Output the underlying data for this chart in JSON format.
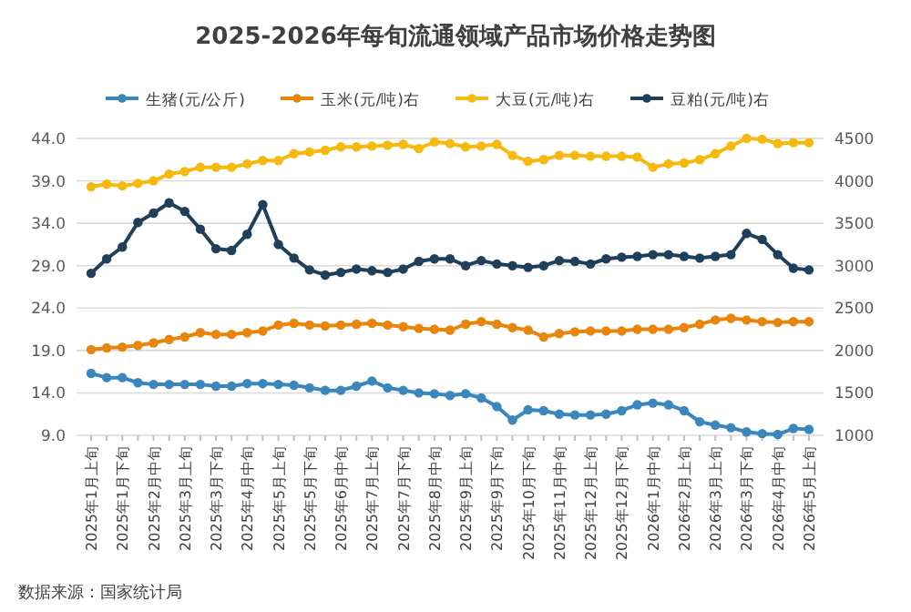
{
  "chart_data": {
    "type": "line",
    "title": "2025-2026年每旬流通领域产品市场价格走势图",
    "categories": [
      "2025年1月上旬",
      null,
      "2025年1月下旬",
      null,
      "2025年2月中旬",
      null,
      "2025年3月上旬",
      null,
      "2025年3月下旬",
      null,
      "2025年4月中旬",
      null,
      "2025年5月上旬",
      null,
      "2025年5月下旬",
      null,
      "2025年6月中旬",
      null,
      "2025年7月上旬",
      null,
      "2025年7月下旬",
      null,
      "2025年8月中旬",
      null,
      "2025年9月上旬",
      null,
      "2025年9月下旬",
      null,
      "2025年10月下旬",
      null,
      "2025年11月中旬",
      null,
      "2025年12月上旬",
      null,
      "2025年12月下旬",
      null,
      "2026年1月中旬",
      null,
      "2026年2月上旬",
      null,
      "2026年3月上旬",
      null,
      "2026年3月下旬",
      null,
      "2026年4月中旬",
      null,
      "2026年5月上旬"
    ],
    "series": [
      {
        "name": "生猪(元/公斤)",
        "color": "#3a87bd",
        "values": [
          16.3,
          15.8,
          15.8,
          15.2,
          15.0,
          15.0,
          15.0,
          15.0,
          14.8,
          14.8,
          15.1,
          15.1,
          15.0,
          14.9,
          14.6,
          14.3,
          14.3,
          14.8,
          15.4,
          14.6,
          14.3,
          14.0,
          13.9,
          13.7,
          13.9,
          13.4,
          12.4,
          10.8,
          12.0,
          11.9,
          11.5,
          11.4,
          11.4,
          11.5,
          11.9,
          12.6,
          12.8,
          12.6,
          11.9,
          10.6,
          10.2,
          9.9,
          9.4,
          9.2,
          9.1,
          9.8,
          9.7
        ]
      },
      {
        "name": "玉米(元/吨)右",
        "color": "#e8850c",
        "axis": "y2",
        "values": [
          2010,
          2030,
          2040,
          2060,
          2090,
          2130,
          2160,
          2210,
          2190,
          2190,
          2210,
          2230,
          2300,
          2320,
          2300,
          2290,
          2300,
          2310,
          2320,
          2300,
          2280,
          2260,
          2250,
          2240,
          2310,
          2340,
          2310,
          2270,
          2240,
          2160,
          2200,
          2220,
          2230,
          2230,
          2230,
          2250,
          2250,
          2250,
          2270,
          2310,
          2360,
          2380,
          2360,
          2340,
          2330,
          2340,
          2340
        ]
      },
      {
        "name": "大豆(元/吨)右",
        "color": "#f5b90f",
        "axis": "y2",
        "values": [
          3930,
          3960,
          3940,
          3970,
          4000,
          4080,
          4110,
          4160,
          4160,
          4160,
          4200,
          4240,
          4240,
          4320,
          4340,
          4360,
          4400,
          4400,
          4410,
          4420,
          4430,
          4380,
          4460,
          4440,
          4400,
          4410,
          4430,
          4300,
          4230,
          4250,
          4300,
          4300,
          4290,
          4290,
          4290,
          4280,
          4160,
          4200,
          4210,
          4250,
          4320,
          4410,
          4500,
          4490,
          4440,
          4450,
          4450
        ]
      },
      {
        "name": "豆粕(元/吨)右",
        "color": "#1f3f5a",
        "axis": "y2",
        "values": [
          2910,
          3080,
          3220,
          3510,
          3620,
          3740,
          3640,
          3430,
          3200,
          3180,
          3370,
          3720,
          3250,
          3090,
          2950,
          2890,
          2920,
          2960,
          2940,
          2920,
          2960,
          3050,
          3080,
          3080,
          3000,
          3060,
          3020,
          3000,
          2980,
          3000,
          3060,
          3050,
          3020,
          3080,
          3100,
          3110,
          3130,
          3130,
          3110,
          3090,
          3110,
          3130,
          3380,
          3310,
          3130,
          2970,
          2950
        ]
      }
    ],
    "ylim": [
      9,
      44
    ],
    "yticks": [
      {
        "value": 9,
        "label": "9.0"
      },
      {
        "value": 14,
        "label": "14.0"
      },
      {
        "value": 19,
        "label": "19.0"
      },
      {
        "value": 24,
        "label": "24.0"
      },
      {
        "value": 29,
        "label": "29.0"
      },
      {
        "value": 34,
        "label": "34.0"
      },
      {
        "value": 39,
        "label": "39.0"
      },
      {
        "value": 44,
        "label": "44.0"
      }
    ],
    "y2lim": [
      1000,
      4500
    ],
    "y2ticks": [
      1000,
      1500,
      2000,
      2500,
      3000,
      3500,
      4000,
      4500
    ],
    "grid": "y",
    "legend": "top",
    "marker": "circle",
    "line_style": "solid",
    "annotations": [
      "数据来源：国家统计局"
    ]
  }
}
